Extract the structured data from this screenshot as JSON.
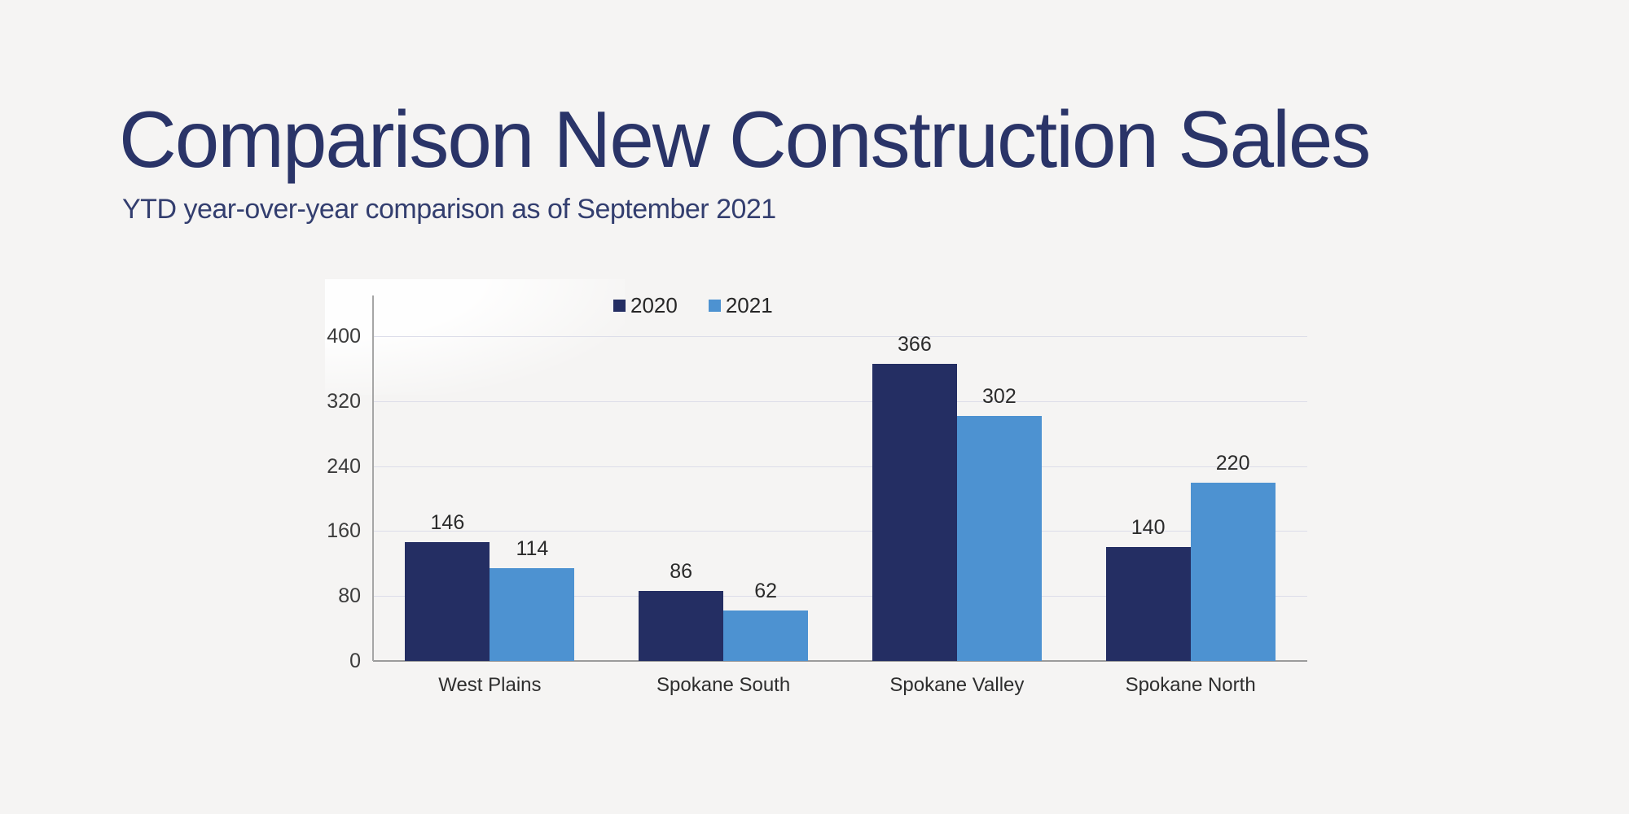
{
  "page": {
    "title": "Comparison New Construction Sales",
    "subtitle": "YTD year-over-year comparison as of September 2021",
    "background_color": "#f5f4f3",
    "title_color": "#2a3468",
    "subtitle_color": "#333e6f"
  },
  "chart_data": {
    "type": "bar",
    "title": "Comparison New Construction Sales",
    "subtitle": "YTD year-over-year comparison as of September 2021",
    "categories": [
      "West Plains",
      "Spokane South",
      "Spokane Valley",
      "Spokane North"
    ],
    "series": [
      {
        "name": "2020",
        "color": "#242e63",
        "values": [
          146,
          86,
          366,
          140
        ]
      },
      {
        "name": "2021",
        "color": "#4d92d1",
        "values": [
          114,
          62,
          302,
          220
        ]
      }
    ],
    "xlabel": "",
    "ylabel": "",
    "ylim": [
      0,
      400
    ],
    "yticks": [
      0,
      80,
      160,
      240,
      320,
      400
    ],
    "grid": true,
    "gridline_color": "#dcdde9",
    "axis_color": "#a6a6a6",
    "legend_position": "top",
    "bar_value_labels": true
  }
}
